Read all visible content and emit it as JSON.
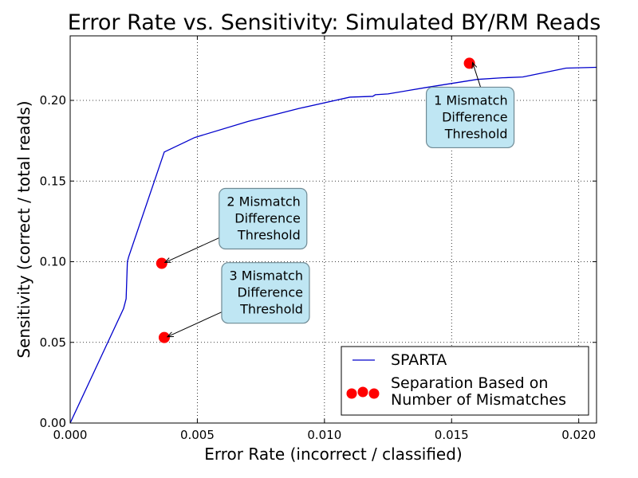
{
  "chart_data": {
    "type": "line",
    "title": "Error Rate vs. Sensitivity: Simulated BY/RM Reads",
    "xlabel": "Error Rate (incorrect / classified)",
    "ylabel": "Sensitivity (correct / total reads)",
    "xlim": [
      0,
      0.0207
    ],
    "ylim": [
      0,
      0.24
    ],
    "xticks": [
      "0.000",
      "0.005",
      "0.010",
      "0.015",
      "0.020"
    ],
    "xtick_values": [
      0,
      0.005,
      0.01,
      0.015,
      0.02
    ],
    "yticks": [
      "0.00",
      "0.05",
      "0.10",
      "0.15",
      "0.20"
    ],
    "ytick_values": [
      0,
      0.05,
      0.1,
      0.15,
      0.2
    ],
    "grid": true,
    "legend_position": "bottom-right",
    "series": [
      {
        "name": "SPARTA",
        "kind": "line",
        "color": "#0000cc",
        "x": [
          0,
          0.0021,
          0.00215,
          0.0022,
          0.00225,
          0.0023,
          0.0037,
          0.0049,
          0.007,
          0.009,
          0.011,
          0.0119,
          0.012,
          0.0125,
          0.014,
          0.016,
          0.017,
          0.0178,
          0.0195,
          0.0207
        ],
        "y": [
          0,
          0.071,
          0.074,
          0.077,
          0.1,
          0.103,
          0.168,
          0.177,
          0.187,
          0.195,
          0.202,
          0.2025,
          0.2035,
          0.204,
          0.208,
          0.213,
          0.214,
          0.2145,
          0.22,
          0.2205
        ]
      },
      {
        "name": "Separation Based on\n Number of Mismatches",
        "kind": "scatter",
        "color": "#ff0000",
        "x": [
          0.0157,
          0.0036,
          0.0037
        ],
        "y": [
          0.223,
          0.099,
          0.053
        ]
      }
    ],
    "annotations": [
      {
        "lines": [
          "1 Mismatch",
          "Difference",
          "Threshold"
        ],
        "x": 0.0157,
        "y": 0.223
      },
      {
        "lines": [
          "2 Mismatch",
          "Difference",
          "Threshold"
        ],
        "x": 0.0036,
        "y": 0.099
      },
      {
        "lines": [
          "3 Mismatch",
          "Difference",
          "Threshold"
        ],
        "x": 0.0037,
        "y": 0.053
      }
    ],
    "legend": [
      {
        "label": "SPARTA",
        "marker": "line"
      },
      {
        "label": "Separation Based on\n Number of Mismatches",
        "marker": "dots"
      }
    ]
  }
}
